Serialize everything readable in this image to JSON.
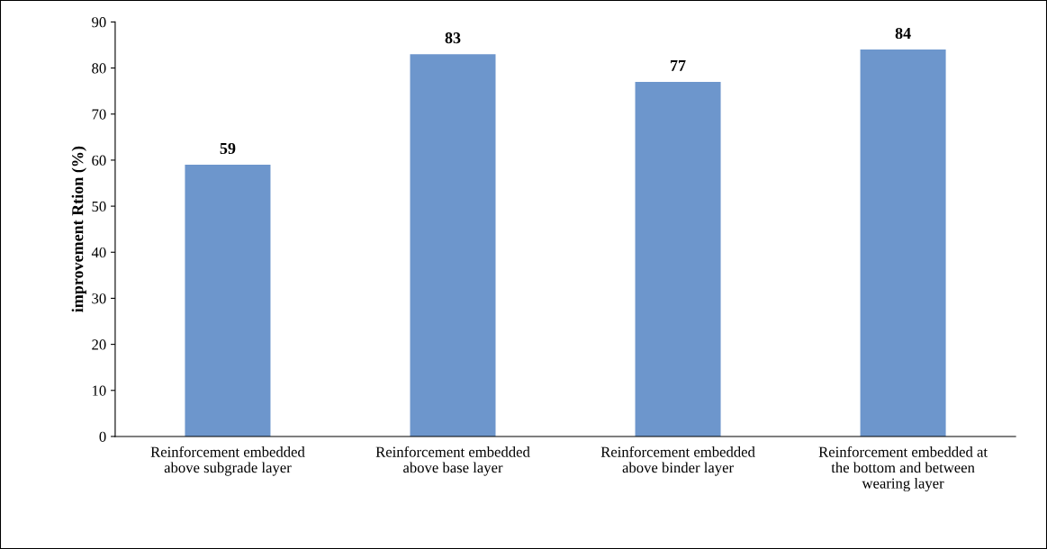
{
  "chart_data": {
    "type": "bar",
    "ylabel": "improvement Rtion (%)",
    "categories": [
      "Reinforcement embedded\nabove subgrade layer",
      "Reinforcement embedded\nabove base layer",
      "Reinforcement embedded\nabove binder layer",
      "Reinforcement embedded at\nthe bottom and between\nwearing layer"
    ],
    "values": [
      59,
      83,
      77,
      84
    ],
    "color": "#6d96cc",
    "ylim": [
      0,
      90
    ],
    "yticks": [
      0,
      10,
      20,
      30,
      40,
      50,
      60,
      70,
      80,
      90
    ],
    "grid": false,
    "data_labels": true
  }
}
